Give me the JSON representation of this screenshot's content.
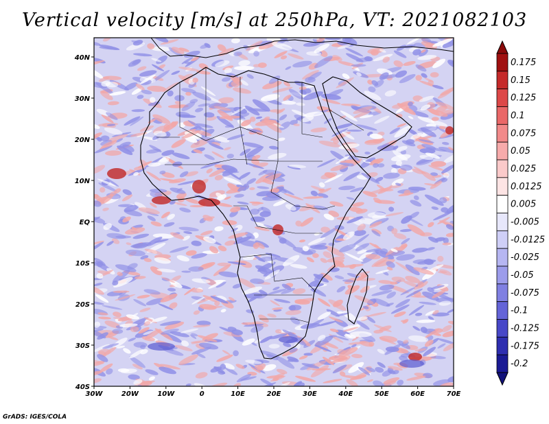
{
  "title": "Vertical velocity [m/s] at 250hPa, VT: 2021082103",
  "credit": "GrADS: IGES/COLA",
  "axes": {
    "x_ticks": [
      "30W",
      "20W",
      "10W",
      "0",
      "10E",
      "20E",
      "30E",
      "40E",
      "50E",
      "60E",
      "70E"
    ],
    "y_ticks": [
      "40N",
      "30N",
      "20N",
      "10N",
      "EQ",
      "10S",
      "20S",
      "30S",
      "40S"
    ]
  },
  "colorbar": {
    "levels": [
      {
        "label": "0.175",
        "color": "#a01010"
      },
      {
        "label": "0.15",
        "color": "#c52a2a"
      },
      {
        "label": "0.125",
        "color": "#dd4848"
      },
      {
        "label": "0.1",
        "color": "#ea6868"
      },
      {
        "label": "0.075",
        "color": "#f28a8a"
      },
      {
        "label": "0.05",
        "color": "#f7abab"
      },
      {
        "label": "0.025",
        "color": "#fbcaca"
      },
      {
        "label": "0.0125",
        "color": "#fde4e4"
      },
      {
        "label": "0.005",
        "color": "#ffffff"
      },
      {
        "label": "-0.005",
        "color": "#e7e7fb"
      },
      {
        "label": "-0.0125",
        "color": "#cfcff7"
      },
      {
        "label": "-0.025",
        "color": "#b6b6f2"
      },
      {
        "label": "-0.05",
        "color": "#9c9ceb"
      },
      {
        "label": "-0.075",
        "color": "#8080e2"
      },
      {
        "label": "-0.1",
        "color": "#6464d8"
      },
      {
        "label": "-0.125",
        "color": "#4848c8"
      },
      {
        "label": "-0.175",
        "color": "#2e2eb0"
      },
      {
        "label": "-0.2",
        "color": "#1a1a94"
      }
    ],
    "top_color": "#8a0a0a",
    "bottom_color": "#12127a"
  },
  "map_colors": {
    "base": "#d4d3f3",
    "up": "#f2a7a7",
    "up_strong": "#c23030",
    "down": "#8f8fe6",
    "coast": "#000000"
  }
}
